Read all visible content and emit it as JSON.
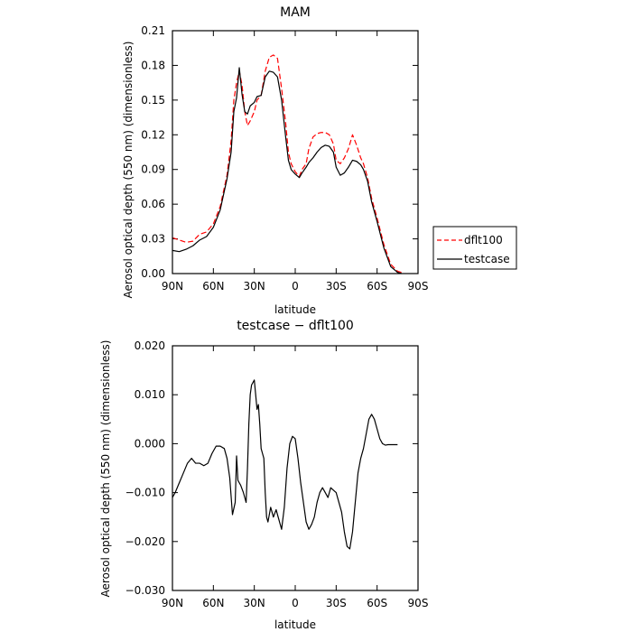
{
  "chart_data": [
    {
      "type": "line",
      "title": "MAM",
      "xlabel": "latitude",
      "ylabel": "Aerosol optical depth (550 nm) (dimensionless)",
      "x_ticks": [
        {
          "value": 90,
          "label": "90N"
        },
        {
          "value": 60,
          "label": "60N"
        },
        {
          "value": 30,
          "label": "30N"
        },
        {
          "value": 0,
          "label": "0"
        },
        {
          "value": -30,
          "label": "30S"
        },
        {
          "value": -60,
          "label": "60S"
        },
        {
          "value": -90,
          "label": "90S"
        }
      ],
      "y_ticks": [
        {
          "value": 0.0,
          "label": "0.00"
        },
        {
          "value": 0.03,
          "label": "0.03"
        },
        {
          "value": 0.06,
          "label": "0.06"
        },
        {
          "value": 0.09,
          "label": "0.09"
        },
        {
          "value": 0.12,
          "label": "0.12"
        },
        {
          "value": 0.15,
          "label": "0.15"
        },
        {
          "value": 0.18,
          "label": "0.18"
        },
        {
          "value": 0.21,
          "label": "0.21"
        }
      ],
      "xlim": [
        90,
        -90
      ],
      "ylim": [
        0,
        0.21
      ],
      "legend_position": "outside-right",
      "series": [
        {
          "name": "dflt100",
          "color": "#ff0000",
          "dash": "dashed",
          "x": [
            90,
            85,
            80,
            75,
            70,
            65,
            60,
            55,
            50,
            47,
            45,
            43,
            41,
            39,
            37,
            35,
            33,
            30,
            28,
            25,
            22,
            19,
            16,
            13,
            10,
            7,
            5,
            3,
            0,
            -3,
            -5,
            -8,
            -10,
            -13,
            -16,
            -19,
            -22,
            -25,
            -28,
            -30,
            -33,
            -36,
            -39,
            -42,
            -45,
            -48,
            -50,
            -53,
            -56,
            -60,
            -65,
            -70,
            -75,
            -78
          ],
          "y": [
            0.031,
            0.029,
            0.027,
            0.028,
            0.034,
            0.036,
            0.043,
            0.058,
            0.085,
            0.115,
            0.15,
            0.165,
            0.175,
            0.163,
            0.14,
            0.128,
            0.132,
            0.14,
            0.15,
            0.154,
            0.175,
            0.187,
            0.189,
            0.186,
            0.16,
            0.13,
            0.105,
            0.095,
            0.088,
            0.084,
            0.09,
            0.095,
            0.108,
            0.118,
            0.121,
            0.122,
            0.122,
            0.12,
            0.112,
            0.098,
            0.095,
            0.1,
            0.108,
            0.12,
            0.111,
            0.1,
            0.095,
            0.083,
            0.065,
            0.048,
            0.025,
            0.008,
            0.002,
            0.001
          ]
        },
        {
          "name": "testcase",
          "color": "#000000",
          "dash": "solid",
          "x": [
            90,
            85,
            80,
            75,
            70,
            65,
            60,
            55,
            50,
            47,
            45,
            43,
            41,
            39,
            37,
            35,
            33,
            30,
            28,
            25,
            22,
            19,
            16,
            13,
            10,
            7,
            5,
            3,
            0,
            -3,
            -5,
            -8,
            -10,
            -13,
            -16,
            -19,
            -22,
            -25,
            -28,
            -30,
            -33,
            -36,
            -39,
            -42,
            -45,
            -48,
            -50,
            -53,
            -56,
            -60,
            -65,
            -70,
            -75,
            -78
          ],
          "y": [
            0.02,
            0.019,
            0.021,
            0.024,
            0.029,
            0.032,
            0.04,
            0.055,
            0.082,
            0.105,
            0.14,
            0.152,
            0.178,
            0.155,
            0.14,
            0.138,
            0.145,
            0.148,
            0.153,
            0.154,
            0.17,
            0.175,
            0.174,
            0.17,
            0.15,
            0.118,
            0.098,
            0.09,
            0.086,
            0.083,
            0.087,
            0.092,
            0.096,
            0.1,
            0.105,
            0.109,
            0.111,
            0.11,
            0.105,
            0.092,
            0.085,
            0.087,
            0.092,
            0.098,
            0.097,
            0.094,
            0.09,
            0.08,
            0.062,
            0.045,
            0.022,
            0.006,
            0.001,
            0.0
          ]
        }
      ]
    },
    {
      "type": "line",
      "title": "testcase − dflt100",
      "xlabel": "latitude",
      "ylabel": "Aerosol optical depth (550 nm) (dimensionless)",
      "x_ticks": [
        {
          "value": 90,
          "label": "90N"
        },
        {
          "value": 60,
          "label": "60N"
        },
        {
          "value": 30,
          "label": "30N"
        },
        {
          "value": 0,
          "label": "0"
        },
        {
          "value": -30,
          "label": "30S"
        },
        {
          "value": -60,
          "label": "60S"
        },
        {
          "value": -90,
          "label": "90S"
        }
      ],
      "y_ticks": [
        {
          "value": -0.03,
          "label": "−0.030"
        },
        {
          "value": -0.02,
          "label": "−0.020"
        },
        {
          "value": -0.01,
          "label": "−0.010"
        },
        {
          "value": 0.0,
          "label": "0.000"
        },
        {
          "value": 0.01,
          "label": "0.010"
        },
        {
          "value": 0.02,
          "label": "0.020"
        }
      ],
      "xlim": [
        90,
        -90
      ],
      "ylim": [
        -0.03,
        0.02
      ],
      "series": [
        {
          "color": "#000000",
          "dash": "solid",
          "x": [
            90,
            88,
            85,
            82,
            79,
            76,
            73,
            70,
            67,
            64,
            61,
            58,
            55,
            52,
            50,
            48,
            46,
            44,
            43,
            42,
            41,
            40,
            38,
            36,
            35,
            34,
            33,
            32,
            31,
            30,
            29,
            28,
            27,
            26,
            25,
            24,
            23,
            22,
            21,
            20,
            18,
            16,
            14,
            12,
            10,
            8,
            6,
            4,
            2,
            0,
            -2,
            -4,
            -6,
            -8,
            -10,
            -12,
            -14,
            -16,
            -18,
            -20,
            -22,
            -24,
            -26,
            -28,
            -30,
            -32,
            -34,
            -36,
            -38,
            -40,
            -42,
            -44,
            -46,
            -48,
            -50,
            -52,
            -54,
            -56,
            -58,
            -60,
            -62,
            -64,
            -66,
            -68,
            -70,
            -75
          ],
          "y": [
            -0.011,
            -0.01,
            -0.008,
            -0.006,
            -0.004,
            -0.003,
            -0.004,
            -0.004,
            -0.0045,
            -0.004,
            -0.002,
            -0.0005,
            -0.0005,
            -0.001,
            -0.003,
            -0.007,
            -0.0145,
            -0.012,
            -0.0025,
            -0.0075,
            -0.008,
            -0.0085,
            -0.01,
            -0.012,
            -0.005,
            0.004,
            0.01,
            0.012,
            0.0125,
            0.013,
            0.01,
            0.007,
            0.008,
            0.004,
            -0.001,
            -0.002,
            -0.003,
            -0.01,
            -0.015,
            -0.016,
            -0.013,
            -0.015,
            -0.0135,
            -0.0155,
            -0.0175,
            -0.013,
            -0.005,
            0.0,
            0.0015,
            0.001,
            -0.003,
            -0.008,
            -0.012,
            -0.016,
            -0.0175,
            -0.0165,
            -0.015,
            -0.012,
            -0.01,
            -0.009,
            -0.01,
            -0.011,
            -0.009,
            -0.0095,
            -0.01,
            -0.012,
            -0.014,
            -0.018,
            -0.021,
            -0.0215,
            -0.018,
            -0.012,
            -0.006,
            -0.003,
            -0.001,
            0.002,
            0.005,
            0.006,
            0.005,
            0.003,
            0.001,
            0.0,
            -0.0003,
            -0.0002,
            -0.0002,
            -0.0002
          ]
        }
      ]
    }
  ]
}
